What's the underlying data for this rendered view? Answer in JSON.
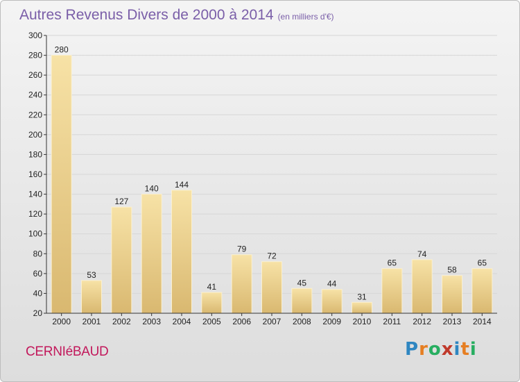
{
  "header": {
    "title": "Autres Revenus Divers de 2000 à 2014",
    "subtitle": "(en milliers d'€)"
  },
  "commune": "CERNIéBAUD",
  "logo": {
    "letters": [
      "P",
      "r",
      "o",
      "x",
      "i",
      "t",
      "i"
    ],
    "colors": [
      "#2e86c1",
      "#e67e22",
      "#27ae60",
      "#c0392b",
      "#2e86c1",
      "#e67e22",
      "#27ae60"
    ]
  },
  "colors": {
    "bar_light": "#f7e2a6",
    "bar_dark": "#d9b870",
    "grid": "#d6d6d6",
    "axis": "#333333"
  },
  "chart_data": {
    "type": "bar",
    "categories": [
      "2000",
      "2001",
      "2002",
      "2003",
      "2004",
      "2005",
      "2006",
      "2007",
      "2008",
      "2009",
      "2010",
      "2011",
      "2012",
      "2013",
      "2014"
    ],
    "values": [
      280,
      53,
      127,
      140,
      144,
      41,
      79,
      72,
      45,
      44,
      31,
      65,
      74,
      58,
      65
    ],
    "yticks": [
      20,
      40,
      60,
      80,
      100,
      120,
      140,
      160,
      180,
      200,
      220,
      240,
      260,
      280,
      300
    ],
    "ylim": [
      20,
      300
    ],
    "grid": true
  }
}
